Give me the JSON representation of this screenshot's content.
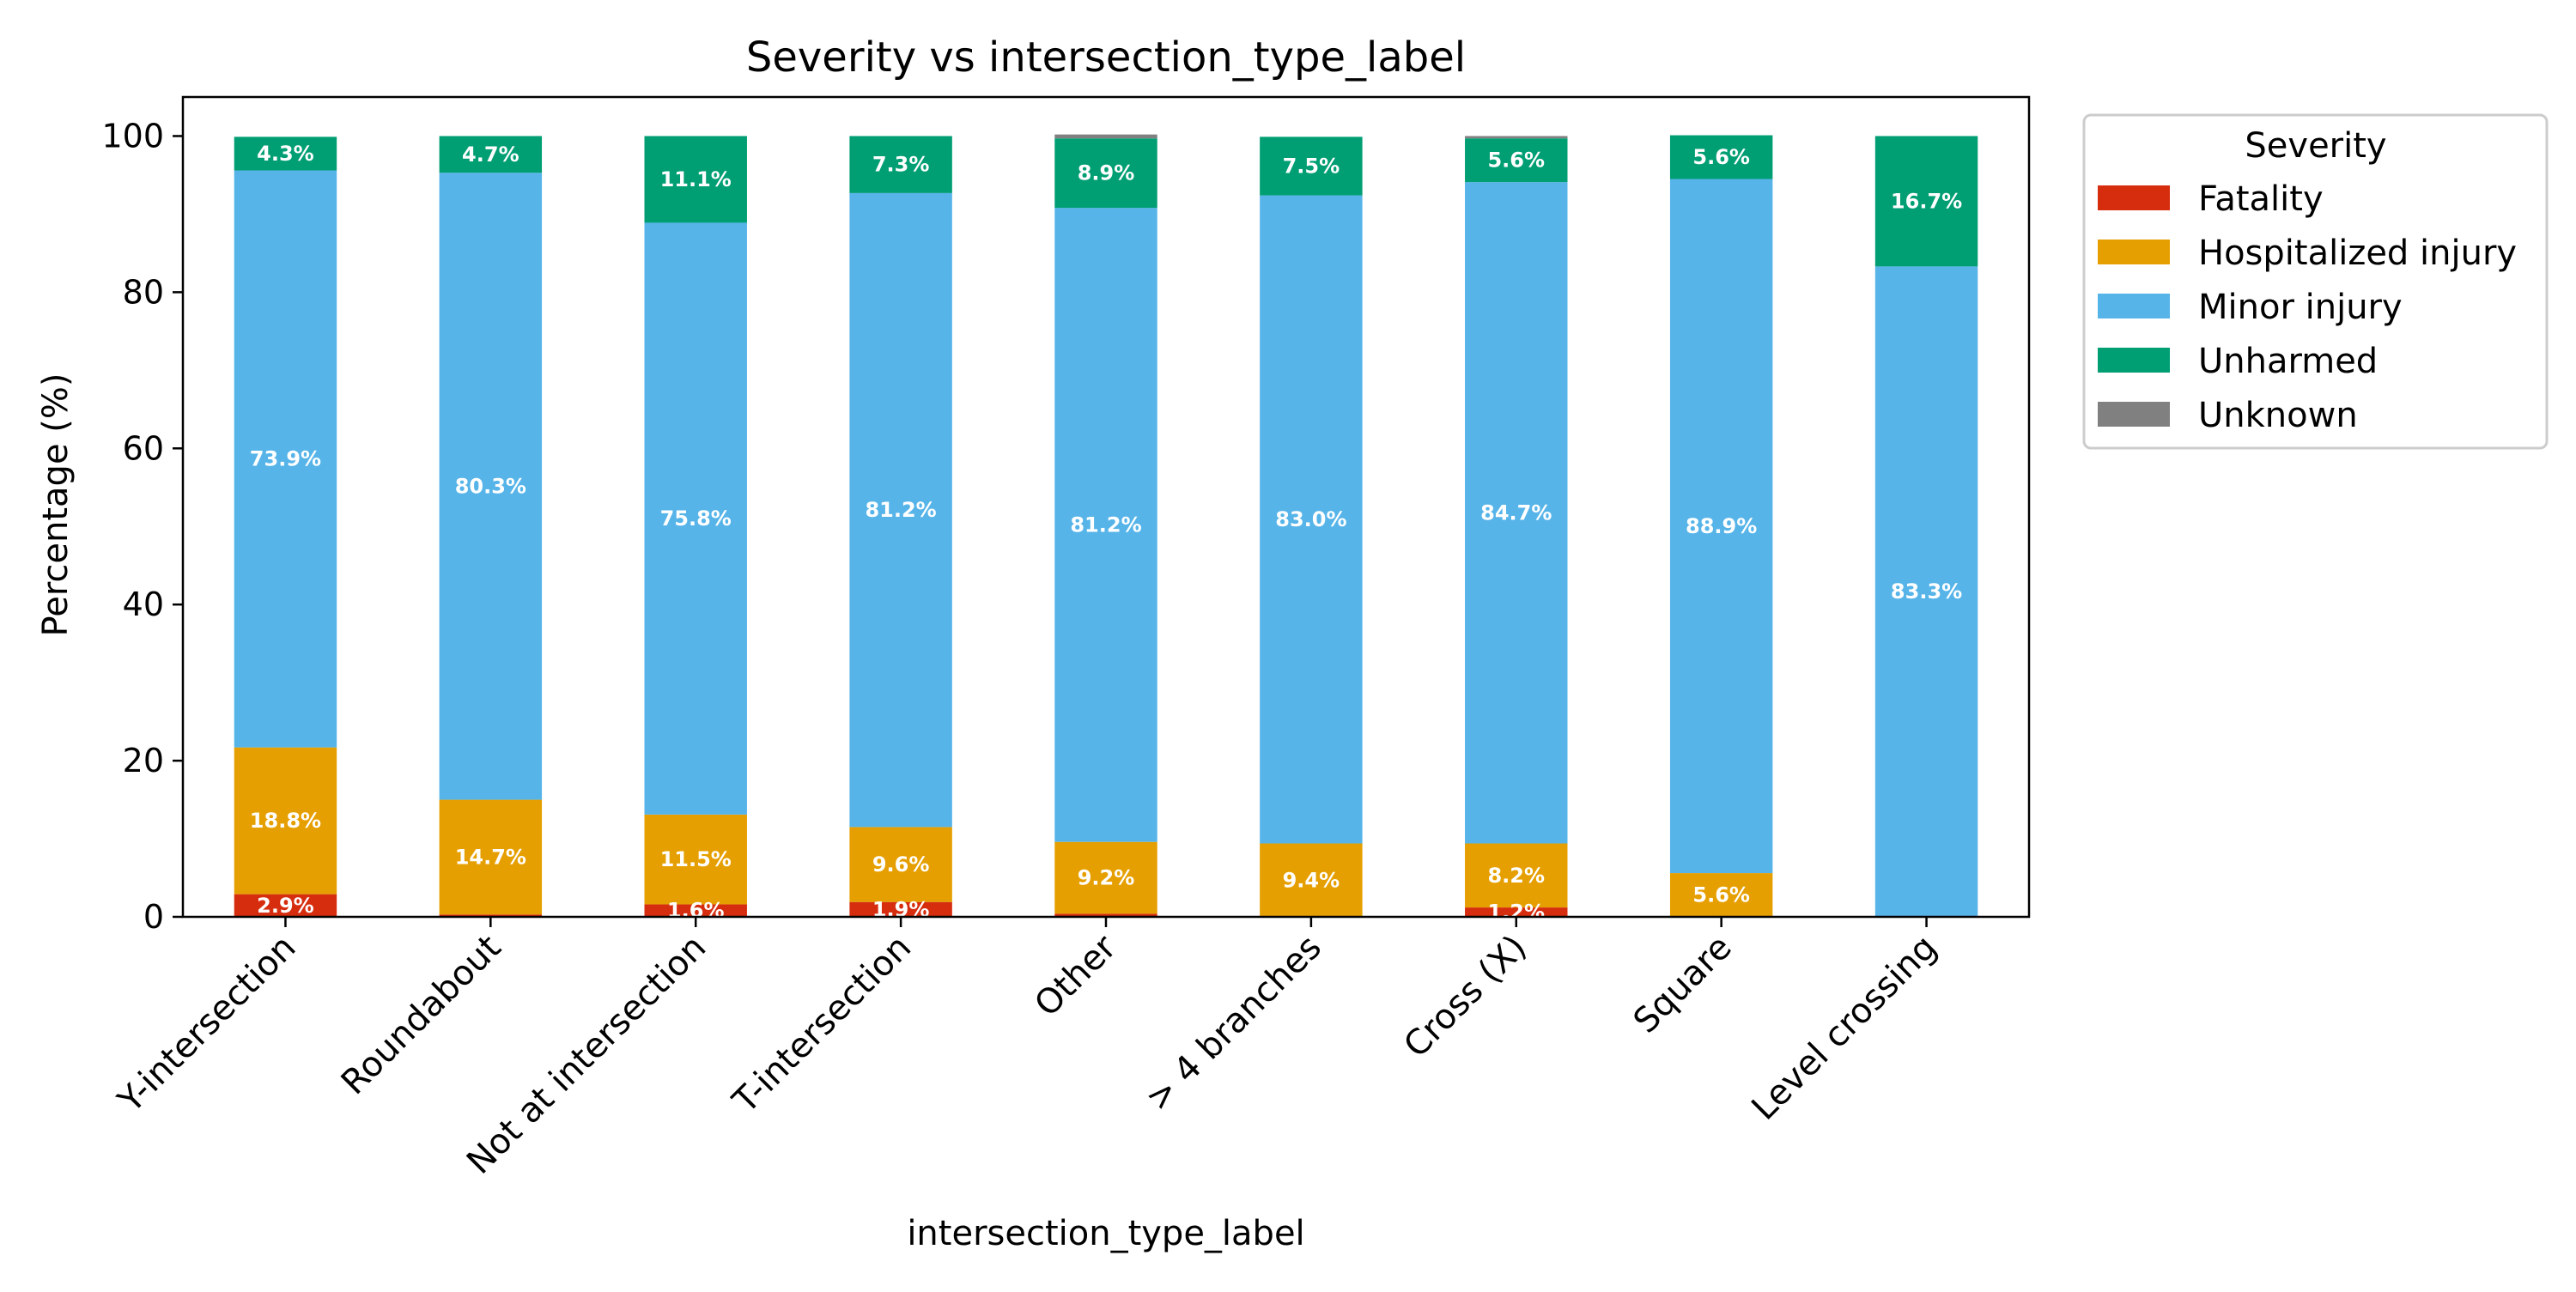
{
  "chart_data": {
    "type": "bar",
    "stacked": true,
    "title": "Severity vs intersection_type_label",
    "xlabel": "intersection_type_label",
    "ylabel": "Percentage (%)",
    "ylim": [
      0,
      105
    ],
    "yticks": [
      0,
      20,
      40,
      60,
      80,
      100
    ],
    "grid": false,
    "legend": {
      "title": "Severity",
      "placement": "outside-top-right"
    },
    "categories": [
      "Y-intersection",
      "Roundabout",
      "Not at intersection",
      "T-intersection",
      "Other",
      "> 4 branches",
      "Cross (X)",
      "Square",
      "Level crossing"
    ],
    "series": [
      {
        "name": "Fatality",
        "color": "#d62d0f",
        "values": [
          2.9,
          0.3,
          1.6,
          1.9,
          0.4,
          0,
          1.2,
          0,
          0
        ]
      },
      {
        "name": "Hospitalized injury",
        "color": "#e69f00",
        "values": [
          18.8,
          14.7,
          11.5,
          9.6,
          9.2,
          9.4,
          8.2,
          5.6,
          0
        ]
      },
      {
        "name": "Minor injury",
        "color": "#56b4e9",
        "values": [
          73.9,
          80.3,
          75.8,
          81.2,
          81.2,
          83.0,
          84.7,
          88.9,
          83.3
        ]
      },
      {
        "name": "Unharmed",
        "color": "#009e73",
        "values": [
          4.3,
          4.7,
          11.1,
          7.3,
          8.9,
          7.5,
          5.6,
          5.6,
          16.7
        ]
      },
      {
        "name": "Unknown",
        "color": "#808080",
        "values": [
          0,
          0,
          0,
          0,
          0.5,
          0,
          0.3,
          0,
          0
        ]
      }
    ],
    "data_labels": [
      [
        "2.9%",
        "",
        "1.6%",
        "1.9%",
        "",
        "",
        "1.2%",
        "",
        ""
      ],
      [
        "18.8%",
        "14.7%",
        "11.5%",
        "9.6%",
        "9.2%",
        "9.4%",
        "8.2%",
        "5.6%",
        ""
      ],
      [
        "73.9%",
        "80.3%",
        "75.8%",
        "81.2%",
        "81.2%",
        "83.0%",
        "84.7%",
        "88.9%",
        "83.3%"
      ],
      [
        "4.3%",
        "4.7%",
        "11.1%",
        "7.3%",
        "8.9%",
        "7.5%",
        "5.6%",
        "5.6%",
        "16.7%"
      ],
      [
        "",
        "",
        "",
        "",
        "",
        "",
        "",
        "",
        ""
      ]
    ]
  }
}
